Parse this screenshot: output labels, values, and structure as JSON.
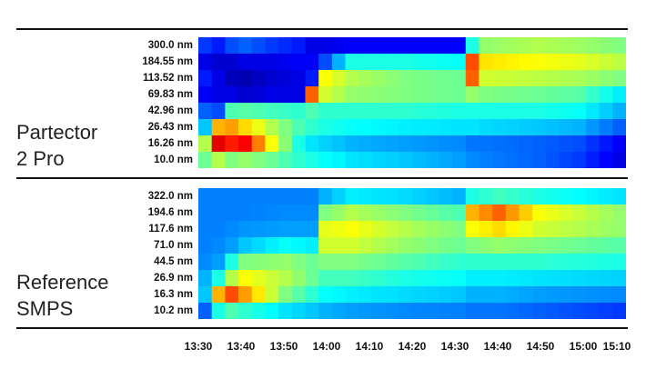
{
  "chart_data": [
    {
      "type": "heatmap",
      "title": "",
      "panel_label": [
        "Partector",
        "2 Pro"
      ],
      "ylabel": "",
      "y_categories": [
        "300.0 nm",
        "184.55 nm",
        "113.52 nm",
        "69.83 nm",
        "42.96 nm",
        "26.43 nm",
        "16.26 nm",
        "10.0 nm"
      ],
      "x_range": [
        "13:30",
        "15:10"
      ],
      "colormap": "jet",
      "time_bins": 32,
      "intensity_keyframes": [
        {
          "t": 0,
          "rows": [
            0.18,
            0.1,
            0.15,
            0.12,
            0.22,
            0.32,
            0.55,
            0.48
          ]
        },
        {
          "t": 1,
          "rows": [
            0.15,
            0.08,
            0.1,
            0.1,
            0.2,
            0.7,
            0.9,
            0.55
          ]
        },
        {
          "t": 2,
          "rows": [
            0.2,
            0.08,
            0.06,
            0.1,
            0.45,
            0.72,
            0.85,
            0.5
          ]
        },
        {
          "t": 3,
          "rows": [
            0.22,
            0.1,
            0.05,
            0.08,
            0.46,
            0.66,
            0.88,
            0.52
          ]
        },
        {
          "t": 5,
          "rows": [
            0.18,
            0.1,
            0.08,
            0.1,
            0.44,
            0.55,
            0.62,
            0.48
          ]
        },
        {
          "t": 7,
          "rows": [
            0.15,
            0.12,
            0.1,
            0.1,
            0.42,
            0.45,
            0.4,
            0.42
          ]
        },
        {
          "t": 8,
          "rows": [
            0.1,
            0.12,
            0.15,
            0.78,
            0.45,
            0.42,
            0.35,
            0.4
          ]
        },
        {
          "t": 9,
          "rows": [
            0.1,
            0.2,
            0.62,
            0.58,
            0.42,
            0.4,
            0.33,
            0.38
          ]
        },
        {
          "t": 11,
          "rows": [
            0.12,
            0.4,
            0.55,
            0.52,
            0.42,
            0.38,
            0.3,
            0.35
          ]
        },
        {
          "t": 15,
          "rows": [
            0.12,
            0.4,
            0.5,
            0.5,
            0.42,
            0.36,
            0.28,
            0.32
          ]
        },
        {
          "t": 19,
          "rows": [
            0.12,
            0.38,
            0.48,
            0.48,
            0.4,
            0.35,
            0.26,
            0.28
          ]
        },
        {
          "t": 20,
          "rows": [
            0.4,
            0.8,
            0.78,
            0.52,
            0.4,
            0.35,
            0.24,
            0.26
          ]
        },
        {
          "t": 21,
          "rows": [
            0.52,
            0.65,
            0.58,
            0.5,
            0.4,
            0.34,
            0.24,
            0.25
          ]
        },
        {
          "t": 25,
          "rows": [
            0.55,
            0.62,
            0.56,
            0.48,
            0.4,
            0.32,
            0.22,
            0.22
          ]
        },
        {
          "t": 28,
          "rows": [
            0.53,
            0.6,
            0.54,
            0.46,
            0.38,
            0.3,
            0.2,
            0.18
          ]
        },
        {
          "t": 31,
          "rows": [
            0.5,
            0.56,
            0.5,
            0.36,
            0.3,
            0.22,
            0.12,
            0.1
          ]
        }
      ]
    },
    {
      "type": "heatmap",
      "title": "",
      "panel_label": [
        "Reference",
        "SMPS"
      ],
      "ylabel": "",
      "y_categories": [
        "322.0 nm",
        "194.6 nm",
        "117.6 nm",
        "71.0 nm",
        "44.5 nm",
        "26.9 nm",
        "16.3 nm",
        "10.2 nm"
      ],
      "x_range": [
        "13:30",
        "15:10"
      ],
      "colormap": "jet",
      "time_bins": 32,
      "intensity_keyframes": [
        {
          "t": 0,
          "rows": [
            0.25,
            0.25,
            0.25,
            0.25,
            0.26,
            0.3,
            0.32,
            0.22
          ]
        },
        {
          "t": 1,
          "rows": [
            0.25,
            0.25,
            0.25,
            0.26,
            0.28,
            0.4,
            0.7,
            0.4
          ]
        },
        {
          "t": 2,
          "rows": [
            0.25,
            0.25,
            0.26,
            0.28,
            0.4,
            0.55,
            0.8,
            0.45
          ]
        },
        {
          "t": 3,
          "rows": [
            0.25,
            0.25,
            0.27,
            0.32,
            0.5,
            0.62,
            0.72,
            0.42
          ]
        },
        {
          "t": 6,
          "rows": [
            0.25,
            0.26,
            0.28,
            0.38,
            0.52,
            0.55,
            0.5,
            0.35
          ]
        },
        {
          "t": 8,
          "rows": [
            0.25,
            0.26,
            0.28,
            0.36,
            0.48,
            0.48,
            0.42,
            0.32
          ]
        },
        {
          "t": 9,
          "rows": [
            0.3,
            0.5,
            0.6,
            0.58,
            0.5,
            0.44,
            0.38,
            0.3
          ]
        },
        {
          "t": 11,
          "rows": [
            0.36,
            0.55,
            0.62,
            0.58,
            0.5,
            0.44,
            0.36,
            0.28
          ]
        },
        {
          "t": 15,
          "rows": [
            0.34,
            0.5,
            0.55,
            0.52,
            0.46,
            0.4,
            0.34,
            0.26
          ]
        },
        {
          "t": 19,
          "rows": [
            0.3,
            0.45,
            0.5,
            0.48,
            0.42,
            0.38,
            0.32,
            0.25
          ]
        },
        {
          "t": 20,
          "rows": [
            0.4,
            0.7,
            0.62,
            0.5,
            0.42,
            0.36,
            0.3,
            0.24
          ]
        },
        {
          "t": 22,
          "rows": [
            0.44,
            0.78,
            0.66,
            0.52,
            0.42,
            0.36,
            0.3,
            0.24
          ]
        },
        {
          "t": 25,
          "rows": [
            0.4,
            0.62,
            0.58,
            0.5,
            0.42,
            0.35,
            0.28,
            0.22
          ]
        },
        {
          "t": 31,
          "rows": [
            0.35,
            0.52,
            0.52,
            0.46,
            0.4,
            0.33,
            0.26,
            0.18
          ]
        }
      ]
    }
  ],
  "x_ticks": [
    "13:30",
    "13:40",
    "13:50",
    "14:00",
    "14:10",
    "14:20",
    "14:30",
    "14:40",
    "14:50",
    "15:00",
    "15:10"
  ]
}
